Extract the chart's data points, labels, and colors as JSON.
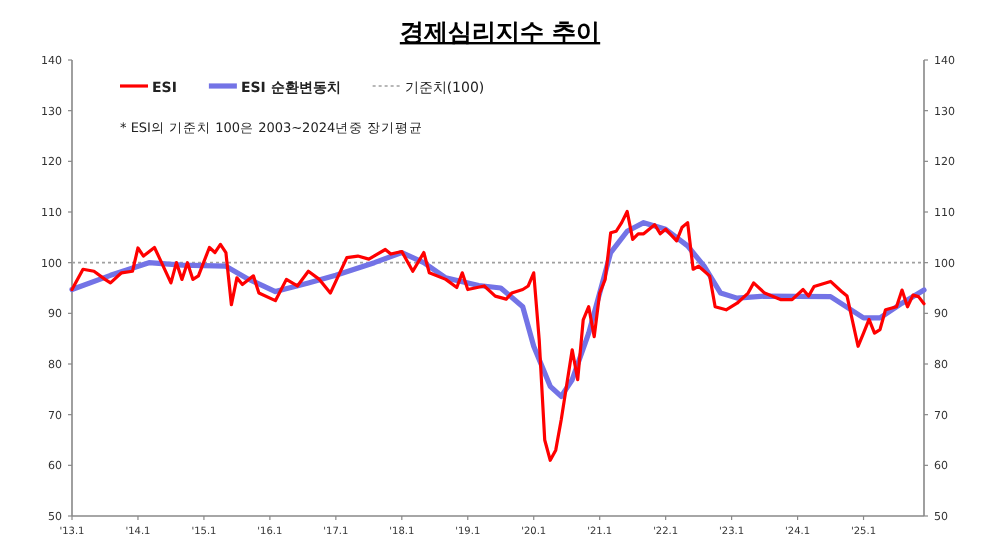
{
  "chart_data": {
    "type": "line",
    "title": "경제심리지수 추이",
    "annotations": [
      "* ESI의 기준치 100은 2003~2024년중 장기평균"
    ],
    "xlim": [
      "2013-01",
      "2025-12"
    ],
    "xticks": [
      {
        "value": "2013-01",
        "label": "'13.1"
      },
      {
        "value": "2014-01",
        "label": "'14.1"
      },
      {
        "value": "2015-01",
        "label": "'15.1"
      },
      {
        "value": "2016-01",
        "label": "'16.1"
      },
      {
        "value": "2017-01",
        "label": "'17.1"
      },
      {
        "value": "2018-01",
        "label": "'18.1"
      },
      {
        "value": "2019-01",
        "label": "'19.1"
      },
      {
        "value": "2020-01",
        "label": "'20.1"
      },
      {
        "value": "2021-01",
        "label": "'21.1"
      },
      {
        "value": "2022-01",
        "label": "'22.1"
      },
      {
        "value": "2023-01",
        "label": "'23.1"
      },
      {
        "value": "2024-01",
        "label": "'24.1"
      },
      {
        "value": "2025-01",
        "label": "'25.1"
      }
    ],
    "ylim": [
      50,
      140
    ],
    "yticks": [
      50,
      60,
      70,
      80,
      90,
      100,
      110,
      120,
      130,
      140
    ],
    "y2lim": [
      50,
      140
    ],
    "y2ticks": [
      50,
      60,
      70,
      80,
      90,
      100,
      110,
      120,
      130,
      140
    ],
    "legend": "top left",
    "ref_lines": [
      {
        "axis": "y",
        "value": 100,
        "label": "기준치(100)",
        "color": "#a0a0a0",
        "line_style": "dotted"
      }
    ],
    "series": [
      {
        "name": "ESI",
        "color": "#ff0000",
        "x": [
          "2013-01",
          "2013-03",
          "2013-05",
          "2013-07",
          "2013-08",
          "2013-10",
          "2013-12",
          "2014-01",
          "2014-02",
          "2014-04",
          "2014-05",
          "2014-07",
          "2014-08",
          "2014-09",
          "2014-10",
          "2014-11",
          "2014-12",
          "2015-02",
          "2015-03",
          "2015-04",
          "2015-05",
          "2015-06",
          "2015-07",
          "2015-08",
          "2015-10",
          "2015-11",
          "2016-02",
          "2016-04",
          "2016-06",
          "2016-08",
          "2016-10",
          "2016-12",
          "2017-03",
          "2017-05",
          "2017-07",
          "2017-10",
          "2017-11",
          "2018-01",
          "2018-03",
          "2018-05",
          "2018-06",
          "2018-09",
          "2018-11",
          "2018-12",
          "2019-01",
          "2019-04",
          "2019-06",
          "2019-08",
          "2019-09",
          "2019-11",
          "2019-12",
          "2020-01",
          "2020-02",
          "2020-03",
          "2020-04",
          "2020-05",
          "2020-06",
          "2020-08",
          "2020-09",
          "2020-10",
          "2020-11",
          "2020-12",
          "2021-01",
          "2021-02",
          "2021-03",
          "2021-04",
          "2021-05",
          "2021-06",
          "2021-07",
          "2021-08",
          "2021-09",
          "2021-11",
          "2021-12",
          "2022-01",
          "2022-03",
          "2022-04",
          "2022-05",
          "2022-06",
          "2022-07",
          "2022-09",
          "2022-10",
          "2022-12",
          "2023-02",
          "2023-04",
          "2023-05",
          "2023-07",
          "2023-10",
          "2023-12",
          "2024-02",
          "2024-03",
          "2024-04",
          "2024-07",
          "2024-09",
          "2024-10",
          "2024-12",
          "2025-01",
          "2025-02",
          "2025-03",
          "2025-04",
          "2025-05",
          "2025-07",
          "2025-08",
          "2025-09",
          "2025-10",
          "2025-11",
          "2025-12"
        ],
        "values": [
          94.7,
          98.7,
          98.3,
          96.7,
          96,
          98,
          98.3,
          102.9,
          101.3,
          103,
          100.7,
          96,
          100,
          96.7,
          100,
          96.7,
          97.4,
          103,
          102,
          103.6,
          102,
          91.7,
          97,
          95.7,
          97.4,
          94,
          92.5,
          96.7,
          95.4,
          98.3,
          96.7,
          94,
          101,
          101.3,
          100.7,
          102.6,
          101.7,
          102.2,
          98.3,
          102,
          98,
          96.7,
          95.1,
          98,
          94.7,
          95.4,
          93.4,
          92.8,
          94,
          94.7,
          95.4,
          98,
          84.7,
          65,
          61,
          63,
          69,
          82.8,
          76.9,
          88.7,
          91.3,
          85.4,
          94,
          96.7,
          105.9,
          106.2,
          107.9,
          110.1,
          104.6,
          105.7,
          105.7,
          107.5,
          105.7,
          106.6,
          104.3,
          107,
          107.9,
          98.7,
          99.3,
          97.4,
          91.3,
          90.7,
          92,
          94,
          96,
          94,
          92.7,
          92.7,
          94.7,
          93.4,
          95.3,
          96.3,
          94.3,
          93.4,
          83.5,
          86.1,
          88.8,
          86.1,
          86.8,
          90.7,
          91.3,
          94.6,
          91.3,
          93.6,
          93.3,
          91.9
        ]
      },
      {
        "name": "ESI 순환변동치",
        "color": "#7373e6",
        "x": [
          "2013-01",
          "2013-08",
          "2014-03",
          "2014-09",
          "2015-05",
          "2015-09",
          "2016-02",
          "2016-08",
          "2017-01",
          "2017-08",
          "2018-01",
          "2018-05",
          "2018-09",
          "2019-03",
          "2019-07",
          "2019-11",
          "2020-01",
          "2020-04",
          "2020-06",
          "2020-08",
          "2020-11",
          "2021-01",
          "2021-03",
          "2021-06",
          "2021-09",
          "2022-01",
          "2022-05",
          "2022-08",
          "2022-11",
          "2023-02",
          "2023-07",
          "2024-07",
          "2025-01",
          "2025-04",
          "2025-08",
          "2025-12"
        ],
        "values": [
          94.7,
          97.5,
          100,
          99.5,
          99.3,
          96.8,
          94.3,
          96,
          97.5,
          100,
          102,
          100,
          97,
          95.5,
          95,
          91.3,
          83.5,
          75.6,
          73.6,
          76.9,
          86.1,
          94,
          102,
          106.2,
          107.9,
          106.6,
          103.3,
          99.3,
          94,
          93,
          93.4,
          93.3,
          89.1,
          89.1,
          92,
          94.6
        ]
      }
    ]
  }
}
